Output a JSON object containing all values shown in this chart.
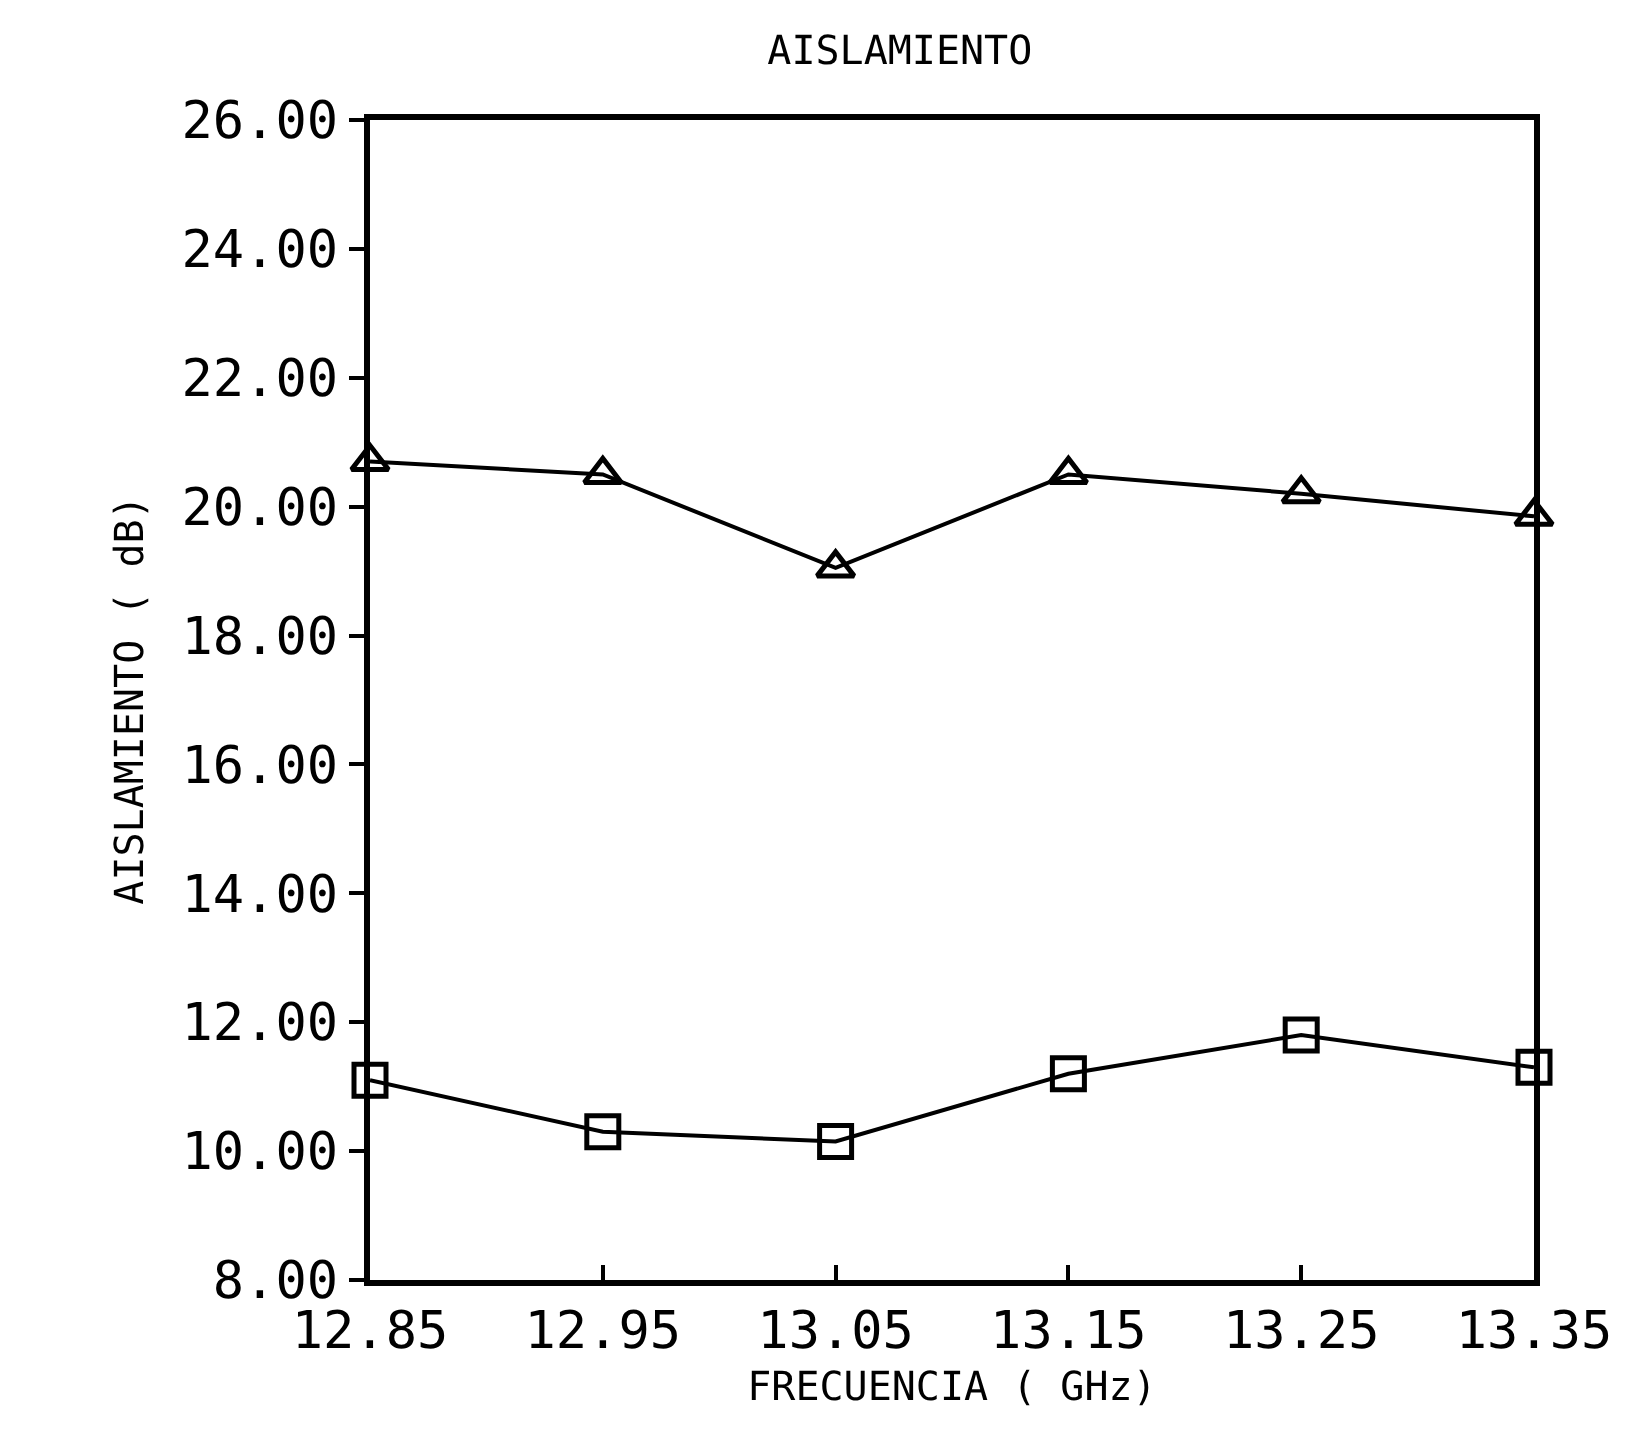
{
  "chart_data": {
    "type": "line",
    "title": "AISLAMIENTO",
    "xlabel": "FRECUENCIA ( GHz)",
    "ylabel": "AISLAMIENTO ( dB)",
    "x": [
      12.85,
      12.95,
      13.05,
      13.15,
      13.25,
      13.35
    ],
    "series": [
      {
        "color": "#000000",
        "marker": "triangle",
        "values": [
          20.7,
          20.5,
          19.05,
          20.5,
          20.2,
          19.85
        ]
      },
      {
        "color": "#000000",
        "marker": "square",
        "values": [
          11.1,
          10.3,
          10.15,
          11.2,
          11.8,
          11.3
        ]
      }
    ],
    "xlim": [
      12.85,
      13.35
    ],
    "xticks": [
      12.85,
      12.95,
      13.05,
      13.15,
      13.25,
      13.35
    ],
    "ylim": [
      8,
      26
    ],
    "yticks": [
      {
        "value": 8,
        "label": "8.00"
      },
      {
        "value": 10,
        "label": "10.00"
      },
      {
        "value": 12,
        "label": "12.00"
      },
      {
        "value": 14,
        "label": "14.00"
      },
      {
        "value": 16,
        "label": "16.00"
      },
      {
        "value": 18,
        "label": "18.00"
      },
      {
        "value": 20,
        "label": "20.00"
      },
      {
        "value": 22,
        "label": "22.00"
      },
      {
        "value": 24,
        "label": "24.00"
      },
      {
        "value": 26,
        "label": "26.00"
      }
    ],
    "line_style": "solid"
  }
}
